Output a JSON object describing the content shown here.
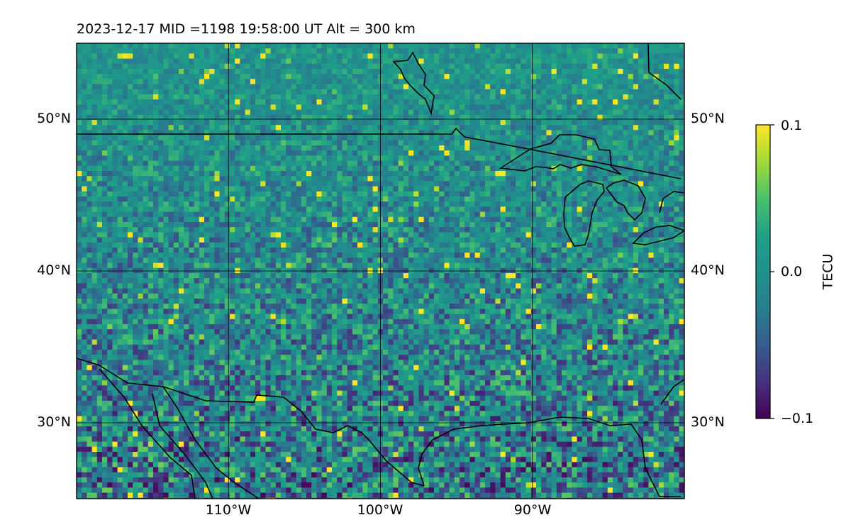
{
  "title": "2023-12-17  MID =1198    19:58:00  UT  Alt = 300 km",
  "map": {
    "projection": "plate-carree",
    "lon_range": [
      -120,
      -80
    ],
    "lat_range": [
      25,
      55
    ],
    "lat_ticks": [
      {
        "value": 50,
        "label": "50°N"
      },
      {
        "value": 40,
        "label": "40°N"
      },
      {
        "value": 30,
        "label": "30°N"
      }
    ],
    "lon_ticks": [
      {
        "value": -110,
        "label": "110°W"
      },
      {
        "value": -100,
        "label": "100°W"
      },
      {
        "value": -90,
        "label": "90°W"
      }
    ],
    "gridlines": true,
    "field": "TEC perturbation (dTEC) grid, noisy, values between -0.1 and 0.1 TECU",
    "coastlines_and_borders": true
  },
  "colorbar": {
    "label": "TECU",
    "colormap": "viridis",
    "range": [
      -0.1,
      0.1
    ],
    "ticks": [
      {
        "value": 0.1,
        "label": "0.1"
      },
      {
        "value": 0.0,
        "label": "0.0"
      },
      {
        "value": -0.1,
        "label": "−0.1"
      }
    ]
  }
}
